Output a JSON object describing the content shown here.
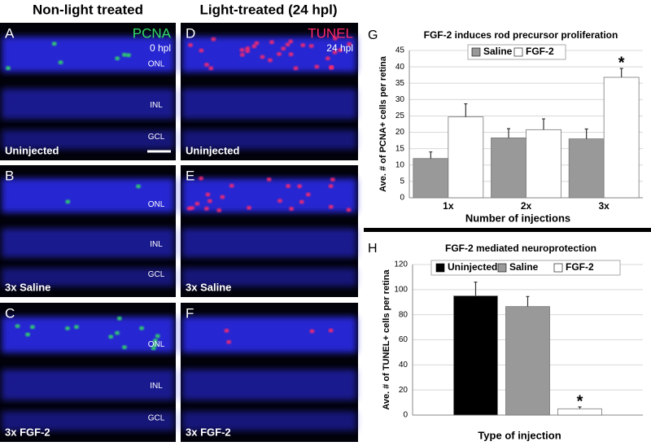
{
  "column_headers": [
    "Non-light treated",
    "Light-treated (24 hpl)"
  ],
  "panels": [
    {
      "label": "A",
      "stain": "PCNA",
      "time": "0 hpl",
      "layers": [
        "ONL",
        "INL",
        "GCL"
      ],
      "condition": "Uninjected"
    },
    {
      "label": "B",
      "layers": [
        "ONL",
        "INL",
        "GCL"
      ],
      "condition": "3x Saline"
    },
    {
      "label": "C",
      "layers": [
        "ONL",
        "INL",
        "GCL"
      ],
      "condition": "3x FGF-2"
    },
    {
      "label": "D",
      "stain": "TUNEL",
      "time": "24 hpl",
      "condition": "Uninjected"
    },
    {
      "label": "E",
      "condition": "3x Saline"
    },
    {
      "label": "F",
      "condition": "3x FGF-2"
    }
  ],
  "chart_data": [
    {
      "type": "bar",
      "panel_label": "G",
      "title": "FGF-2 induces rod precursor proliferation",
      "y_label": "Ave. # of PCNA+ cells per retina",
      "x_label": "Number of injections",
      "categories": [
        "1x",
        "2x",
        "3x"
      ],
      "series": [
        {
          "name": "Saline",
          "color": "#999999",
          "values": [
            12,
            18.3,
            18
          ],
          "errors": [
            2,
            2.8,
            3
          ]
        },
        {
          "name": "FGF-2",
          "color": "#ffffff",
          "values": [
            24.7,
            20.8,
            36.8
          ],
          "errors": [
            4,
            3.3,
            2.7
          ]
        }
      ],
      "ylim": [
        0,
        45
      ],
      "yticks": [
        0,
        5,
        10,
        15,
        20,
        25,
        30,
        35,
        40,
        45
      ],
      "grid": true,
      "annotation": "*"
    },
    {
      "type": "bar",
      "panel_label": "H",
      "title": "FGF-2 mediated neuroprotection",
      "y_label": "Ave. # of TUNEL+ cells per retina",
      "x_label": "Type of injection",
      "categories": [
        null
      ],
      "series": [
        {
          "name": "Uninjected",
          "color": "#000000",
          "values": [
            95
          ],
          "errors": [
            11
          ]
        },
        {
          "name": "Saline",
          "color": "#999999",
          "values": [
            86.5
          ],
          "errors": [
            8
          ]
        },
        {
          "name": "FGF-2",
          "color": "#ffffff",
          "values": [
            5
          ],
          "errors": [
            1.5
          ]
        }
      ],
      "ylim": [
        0,
        120
      ],
      "yticks": [
        0,
        20,
        40,
        60,
        80,
        100,
        120
      ],
      "grid": true,
      "annotation": "*"
    }
  ]
}
